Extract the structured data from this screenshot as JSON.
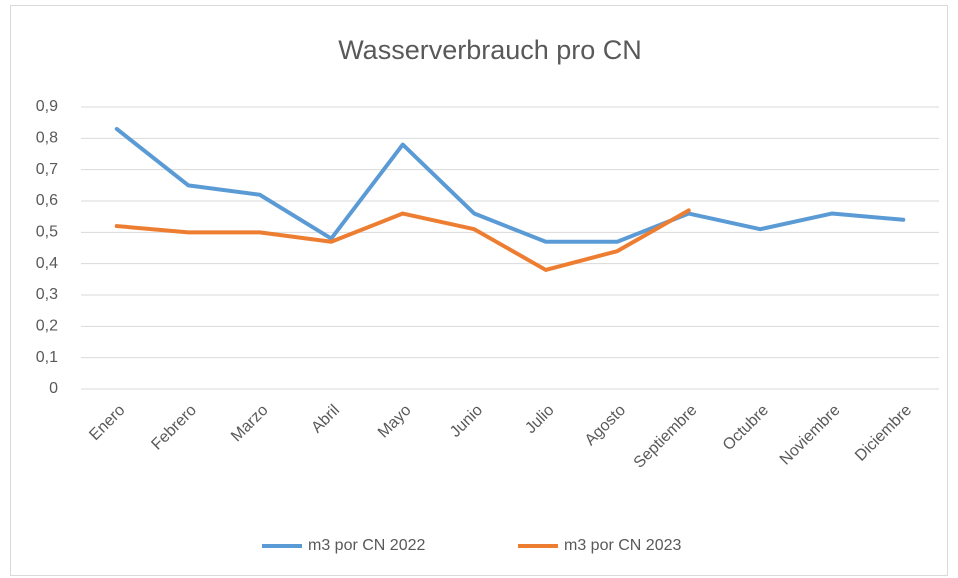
{
  "chart_data": {
    "type": "line",
    "title": "Wasserverbrauch pro CN",
    "categories": [
      "Enero",
      "Febrero",
      "Marzo",
      "Abril",
      "Mayo",
      "Junio",
      "Julio",
      "Agosto",
      "Septiembre",
      "Octubre",
      "Noviembre",
      "Diciembre"
    ],
    "series": [
      {
        "name": "m3 por CN 2022",
        "color": "#5b9bd5",
        "values": [
          0.83,
          0.65,
          0.62,
          0.48,
          0.78,
          0.56,
          0.47,
          0.47,
          0.56,
          0.51,
          0.56,
          0.54
        ]
      },
      {
        "name": "m3 por CN 2023",
        "color": "#ed7d31",
        "values": [
          0.52,
          0.5,
          0.5,
          0.47,
          0.56,
          0.51,
          0.38,
          0.44,
          0.57,
          null,
          null,
          null
        ]
      }
    ],
    "ylim": [
      0,
      0.9
    ],
    "yticks": [
      0,
      {
        "value": 0.1,
        "label": "0,1"
      },
      {
        "value": 0.2,
        "label": "0,2"
      },
      {
        "value": 0.3,
        "label": "0,3"
      },
      {
        "value": 0.4,
        "label": "0,4"
      },
      {
        "value": 0.5,
        "label": "0,5"
      },
      {
        "value": 0.6,
        "label": "0,6"
      },
      {
        "value": 0.7,
        "label": "0,7"
      },
      {
        "value": 0.8,
        "label": "0,8"
      },
      {
        "value": 0.9,
        "label": "0,9"
      }
    ],
    "grid": true,
    "legend": "bottom"
  }
}
